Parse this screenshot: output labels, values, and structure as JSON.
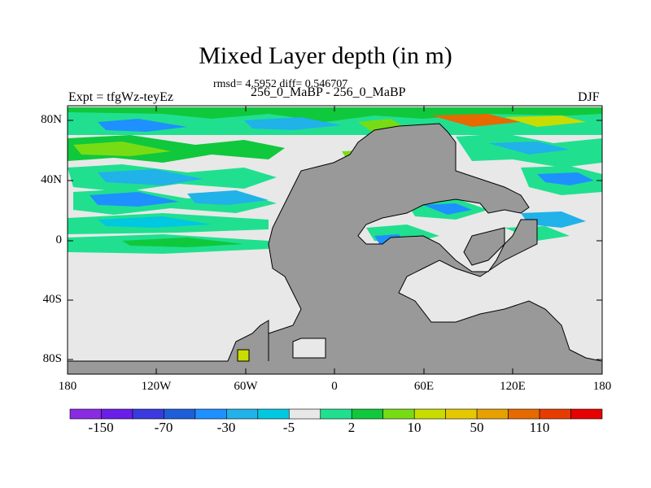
{
  "title": "Mixed Layer depth (in m)",
  "subtitle": "rmsd= 4.5952 diff= 0.546707",
  "left_label": "Expt = tfgWz-teyEz",
  "center_label": "256_0_MaBP - 256_0_MaBP",
  "right_label": "DJF",
  "y_ticks": [
    "80N",
    "40N",
    "0",
    "40S",
    "80S"
  ],
  "x_ticks": [
    "180",
    "120W",
    "60W",
    "0",
    "60E",
    "120E",
    "180"
  ],
  "colorbar": {
    "colors": [
      "#8a2be2",
      "#6a1ee8",
      "#3a3ae0",
      "#1e5ed8",
      "#1e90ff",
      "#20b2e8",
      "#00c8e0",
      "#e8e8e8",
      "#20e090",
      "#10c83c",
      "#78dc14",
      "#c8dc00",
      "#e6c800",
      "#e6a000",
      "#e66a00",
      "#e63c00",
      "#e60000"
    ],
    "labels": [
      "-150",
      "-70",
      "-30",
      "-5",
      "2",
      "10",
      "50",
      "110"
    ]
  },
  "land_color": "#999999",
  "ocean_background": "#e8e8e8"
}
